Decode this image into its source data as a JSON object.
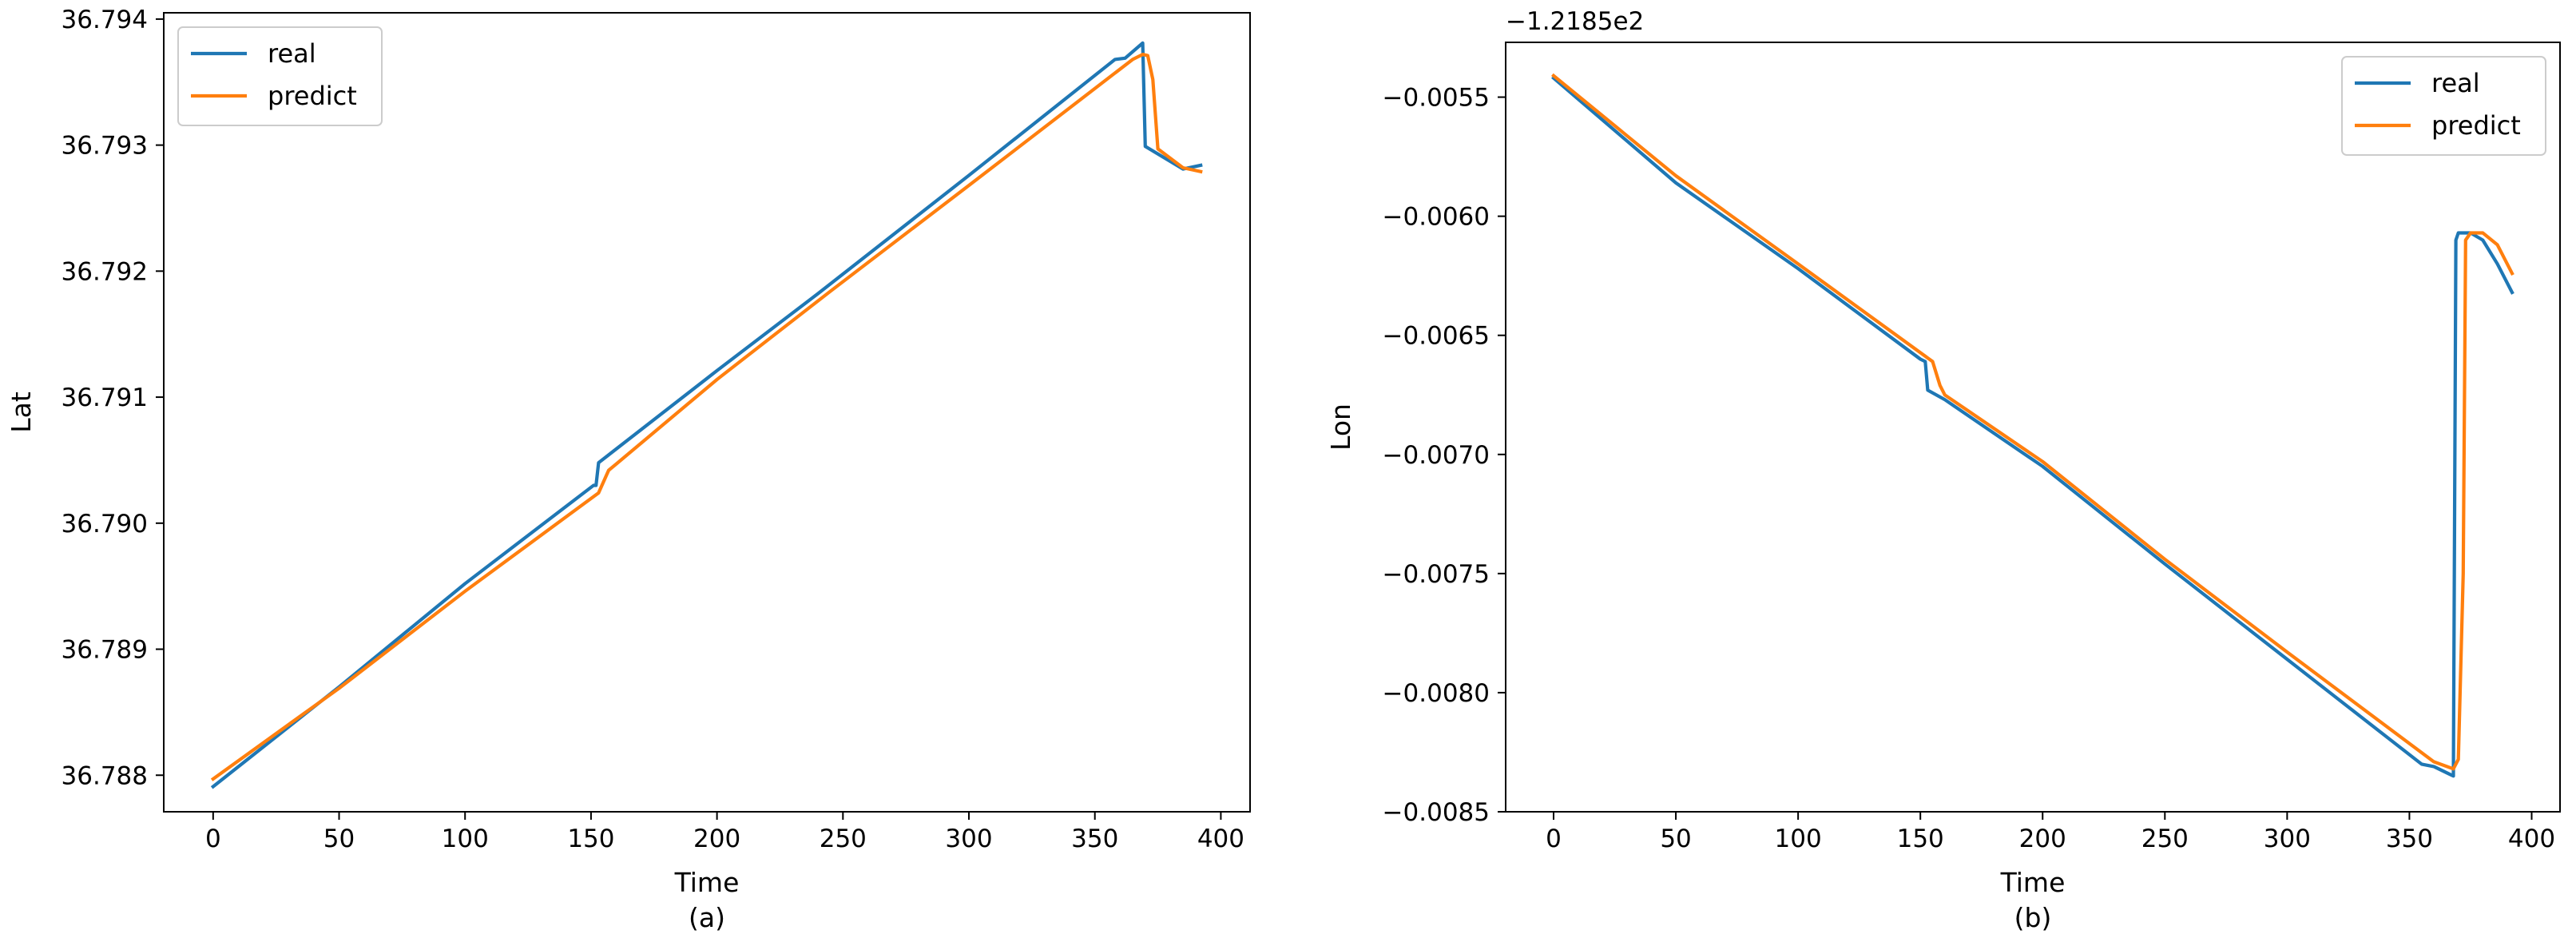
{
  "chart_data": [
    {
      "type": "line",
      "caption": "(a)",
      "xlabel": "Time",
      "ylabel": "Lat",
      "offset_text": "",
      "xlim": [
        -19.6,
        411.6
      ],
      "ylim": [
        36.78771,
        36.79405
      ],
      "xticks": [
        0,
        50,
        100,
        150,
        200,
        250,
        300,
        350,
        400
      ],
      "yticks": [
        36.788,
        36.789,
        36.79,
        36.791,
        36.792,
        36.793,
        36.794
      ],
      "xtick_labels": [
        "0",
        "50",
        "100",
        "150",
        "200",
        "250",
        "300",
        "350",
        "400"
      ],
      "ytick_labels": [
        "36.788",
        "36.789",
        "36.790",
        "36.791",
        "36.792",
        "36.793",
        "36.794"
      ],
      "legend": {
        "position": "upper-left"
      },
      "series": [
        {
          "name": "real",
          "color": "#1f77b4",
          "x": [
            0,
            50,
            100,
            151,
            152,
            153,
            200,
            240,
            300,
            358,
            362,
            369,
            370,
            385,
            392
          ],
          "y": [
            36.78791,
            36.7887,
            36.78952,
            36.7903,
            36.7903,
            36.79048,
            36.79121,
            36.79182,
            36.79276,
            36.79368,
            36.79369,
            36.79381,
            36.79299,
            36.79281,
            36.79284
          ]
        },
        {
          "name": "predict",
          "color": "#ff7f0e",
          "x": [
            0,
            50,
            100,
            153,
            157,
            160,
            200,
            245,
            300,
            365,
            369,
            371,
            373,
            375,
            385,
            392
          ],
          "y": [
            36.78797,
            36.78869,
            36.78946,
            36.79024,
            36.79042,
            36.79047,
            36.79114,
            36.79184,
            36.79268,
            36.79368,
            36.79372,
            36.79371,
            36.79352,
            36.79297,
            36.79282,
            36.79279
          ]
        }
      ]
    },
    {
      "type": "line",
      "caption": "(b)",
      "xlabel": "Time",
      "ylabel": "Lon",
      "offset_text": "−1.2185e2",
      "xlim": [
        -19.6,
        411.6
      ],
      "ylim": [
        -0.0085,
        -0.00527
      ],
      "xticks": [
        0,
        50,
        100,
        150,
        200,
        250,
        300,
        350,
        400
      ],
      "yticks": [
        -0.0085,
        -0.008,
        -0.0075,
        -0.007,
        -0.0065,
        -0.006,
        -0.0055
      ],
      "xtick_labels": [
        "0",
        "50",
        "100",
        "150",
        "200",
        "250",
        "300",
        "350",
        "400"
      ],
      "ytick_labels": [
        "−0.0085",
        "−0.0080",
        "−0.0075",
        "−0.0070",
        "−0.0065",
        "−0.0060",
        "−0.0055"
      ],
      "legend": {
        "position": "upper-right"
      },
      "series": [
        {
          "name": "real",
          "color": "#1f77b4",
          "x": [
            0,
            50,
            100,
            150,
            152,
            153,
            160,
            200,
            250,
            300,
            355,
            360,
            366,
            368,
            369,
            370,
            375,
            380,
            386,
            392
          ],
          "y": [
            -0.00542,
            -0.00586,
            -0.00622,
            -0.0066,
            -0.00661,
            -0.00673,
            -0.00677,
            -0.00705,
            -0.00746,
            -0.00786,
            -0.0083,
            -0.00831,
            -0.00834,
            -0.00835,
            -0.0061,
            -0.00607,
            -0.00607,
            -0.0061,
            -0.0062,
            -0.00632
          ]
        },
        {
          "name": "predict",
          "color": "#ff7f0e",
          "x": [
            0,
            50,
            100,
            155,
            158,
            160,
            200,
            250,
            300,
            360,
            368,
            370,
            372,
            373,
            375,
            380,
            386,
            392
          ],
          "y": [
            -0.00541,
            -0.00583,
            -0.0062,
            -0.00661,
            -0.00671,
            -0.00675,
            -0.00703,
            -0.00744,
            -0.00783,
            -0.00829,
            -0.00832,
            -0.00828,
            -0.0075,
            -0.0061,
            -0.00607,
            -0.00607,
            -0.00612,
            -0.00624
          ]
        }
      ]
    }
  ]
}
